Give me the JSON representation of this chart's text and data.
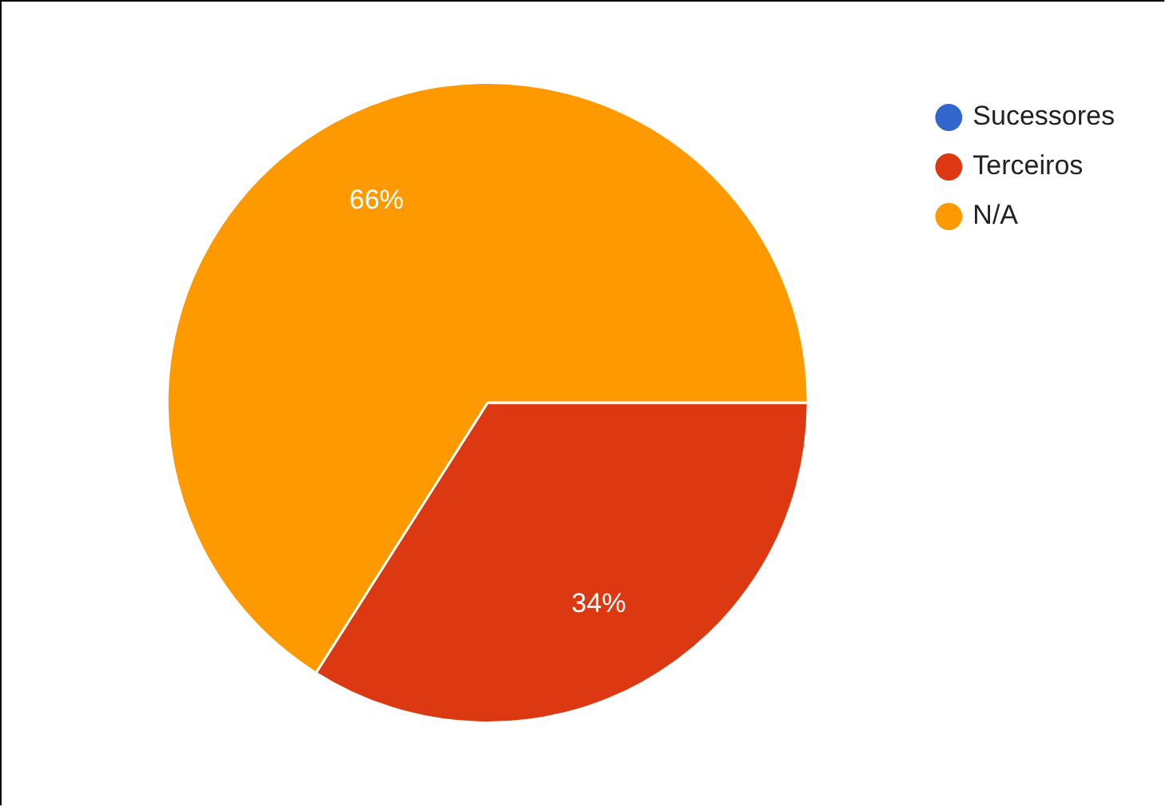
{
  "chart_data": {
    "type": "pie",
    "categories": [
      "Sucessores",
      "Terceiros",
      "N/A"
    ],
    "values": [
      0,
      34,
      66
    ],
    "colors": [
      "#3366cc",
      "#dc3912",
      "#ff9900"
    ],
    "value_labels": [
      null,
      "34%",
      "66%"
    ],
    "legend": "top right"
  }
}
